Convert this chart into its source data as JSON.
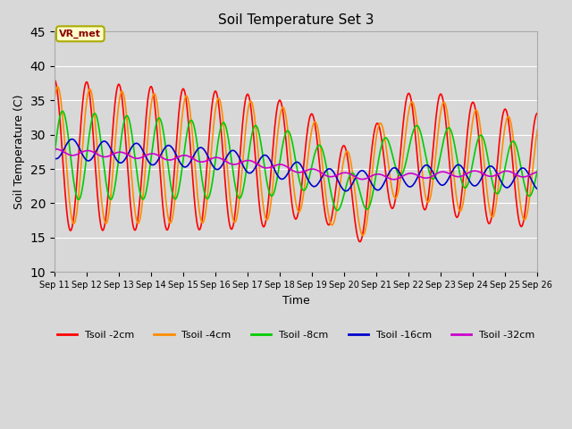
{
  "title": "Soil Temperature Set 3",
  "xlabel": "Time",
  "ylabel": "Soil Temperature (C)",
  "ylim": [
    10,
    45
  ],
  "yticks": [
    10,
    15,
    20,
    25,
    30,
    35,
    40,
    45
  ],
  "fig_bg_color": "#d8d8d8",
  "plot_bg_color": "#d8d8d8",
  "annotation_text": "VR_met",
  "annotation_bg": "#ffffcc",
  "annotation_border": "#aaaa00",
  "annotation_text_color": "#8B0000",
  "colors": {
    "Tsoil -2cm": "#ff0000",
    "Tsoil -4cm": "#ff8c00",
    "Tsoil -8cm": "#00cc00",
    "Tsoil -16cm": "#0000cc",
    "Tsoil -32cm": "#cc00cc"
  },
  "x_start": 11,
  "x_end": 26,
  "n_points": 720,
  "xtick_labels": [
    "Sep 11",
    "Sep 12",
    "Sep 13",
    "Sep 14",
    "Sep 15",
    "Sep 16",
    "Sep 17",
    "Sep 18",
    "Sep 19",
    "Sep 20",
    "Sep 21",
    "Sep 22",
    "Sep 23",
    "Sep 24",
    "Sep 25",
    "Sep 26"
  ],
  "xtick_positions": [
    11,
    12,
    13,
    14,
    15,
    16,
    17,
    18,
    19,
    20,
    21,
    22,
    23,
    24,
    25,
    26
  ]
}
